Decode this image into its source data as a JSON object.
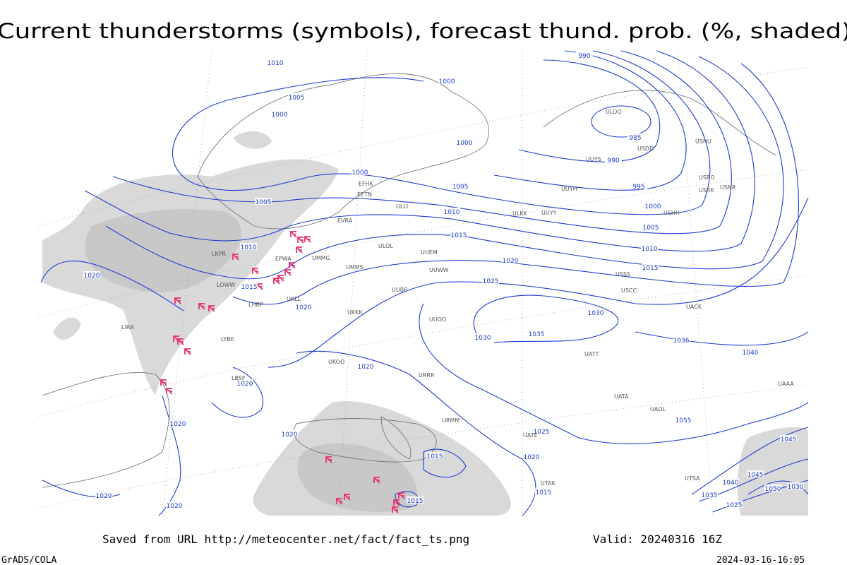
{
  "header": {
    "title": "Current thunderstorms (symbols), forecast thund. prob. (%, shaded)"
  },
  "map": {
    "isobar_labels": [
      "1010",
      "1000",
      "990",
      "1005",
      "1000",
      "1000",
      "985",
      "990",
      "995",
      "1000",
      "1005",
      "1005",
      "1010",
      "1000",
      "1005",
      "1010",
      "1015",
      "1010",
      "1015",
      "1020",
      "1015",
      "1020",
      "1025",
      "1020",
      "1030",
      "1035",
      "1030",
      "1036",
      "1040",
      "1020",
      "1020",
      "1020",
      "1025",
      "1020",
      "1055",
      "1020",
      "1015",
      "1015",
      "1015",
      "1020",
      "1020",
      "1045",
      "1045",
      "1040",
      "1050",
      "1035",
      "1025",
      "1030"
    ],
    "station_labels": [
      "ULOO",
      "USHU",
      "USDD",
      "UUYS",
      "UUYH",
      "USRO",
      "USRK",
      "USNR",
      "USHH",
      "ULKK",
      "UUYY",
      "UUEM",
      "UMMS",
      "UUBP",
      "UKKK",
      "UUOO",
      "URRR",
      "UATT",
      "UATA",
      "UAOL",
      "USSS",
      "USCC",
      "UACK",
      "UAAA",
      "LIRA",
      "LYBE",
      "LBSF",
      "LKPR",
      "EPWA",
      "LOWW",
      "LHBP",
      "UKLL",
      "EVRA",
      "EETN",
      "EFHK",
      "ULLI",
      "UMMG",
      "ULOL",
      "UUWW",
      "URMM",
      "UATE",
      "UTAK",
      "UTSA",
      "UKOO"
    ]
  },
  "footer": {
    "source": "Saved from URL http://meteocenter.net/fact/fact_ts.png",
    "valid": "Valid: 20240316 16Z",
    "software": "GrADS/COLA",
    "timestamp": "2024-03-16-16:05"
  }
}
